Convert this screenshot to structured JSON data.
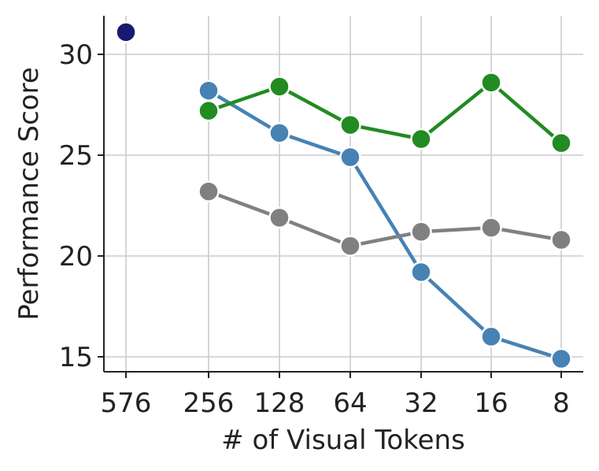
{
  "chart_data": {
    "type": "line",
    "x_categories": [
      "576",
      "256",
      "128",
      "64",
      "32",
      "16",
      "8"
    ],
    "xlabel": "# of Visual Tokens",
    "ylabel": "Performance Score",
    "ylim": [
      14.2,
      32.0
    ],
    "yticks": [
      15,
      20,
      25,
      30
    ],
    "grid": true,
    "legend": "none",
    "series": [
      {
        "color": "#191970",
        "values": [
          31.1,
          null,
          null,
          null,
          null,
          null,
          null
        ]
      },
      {
        "color": "#4682b4",
        "values": [
          null,
          28.2,
          26.1,
          24.9,
          19.2,
          16.0,
          14.9
        ]
      },
      {
        "color": "#228b22",
        "values": [
          null,
          27.2,
          28.4,
          26.5,
          25.8,
          28.6,
          25.6
        ]
      },
      {
        "color": "#808080",
        "values": [
          null,
          23.2,
          21.9,
          20.5,
          21.2,
          21.4,
          20.8
        ]
      }
    ]
  }
}
